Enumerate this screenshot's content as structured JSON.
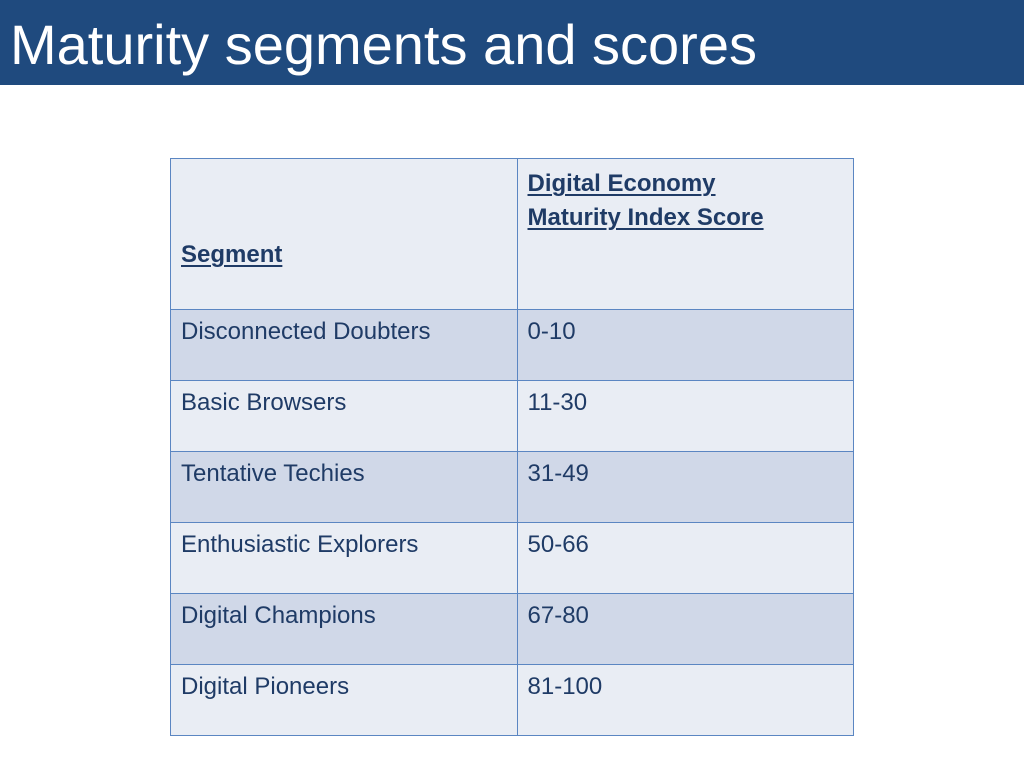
{
  "slide": {
    "title": "Maturity segments and scores"
  },
  "colors": {
    "title_bar": "#1f4a7e",
    "header_text": "#1f3b66",
    "row_dark": "#d0d8e8",
    "row_light": "#e9edf4",
    "border": "#5b86c2"
  },
  "table": {
    "headers": {
      "segment": "Segment",
      "score_line1": "Digital Economy",
      "score_line2": "Maturity Index Score"
    },
    "rows": [
      {
        "segment": "Disconnected Doubters",
        "score": "0-10"
      },
      {
        "segment": "Basic Browsers",
        "score": "11-30"
      },
      {
        "segment": "Tentative Techies",
        "score": "31-49"
      },
      {
        "segment": "Enthusiastic Explorers",
        "score": "50-66"
      },
      {
        "segment": "Digital Champions",
        "score": "67-80"
      },
      {
        "segment": "Digital Pioneers",
        "score": "81-100"
      }
    ]
  }
}
